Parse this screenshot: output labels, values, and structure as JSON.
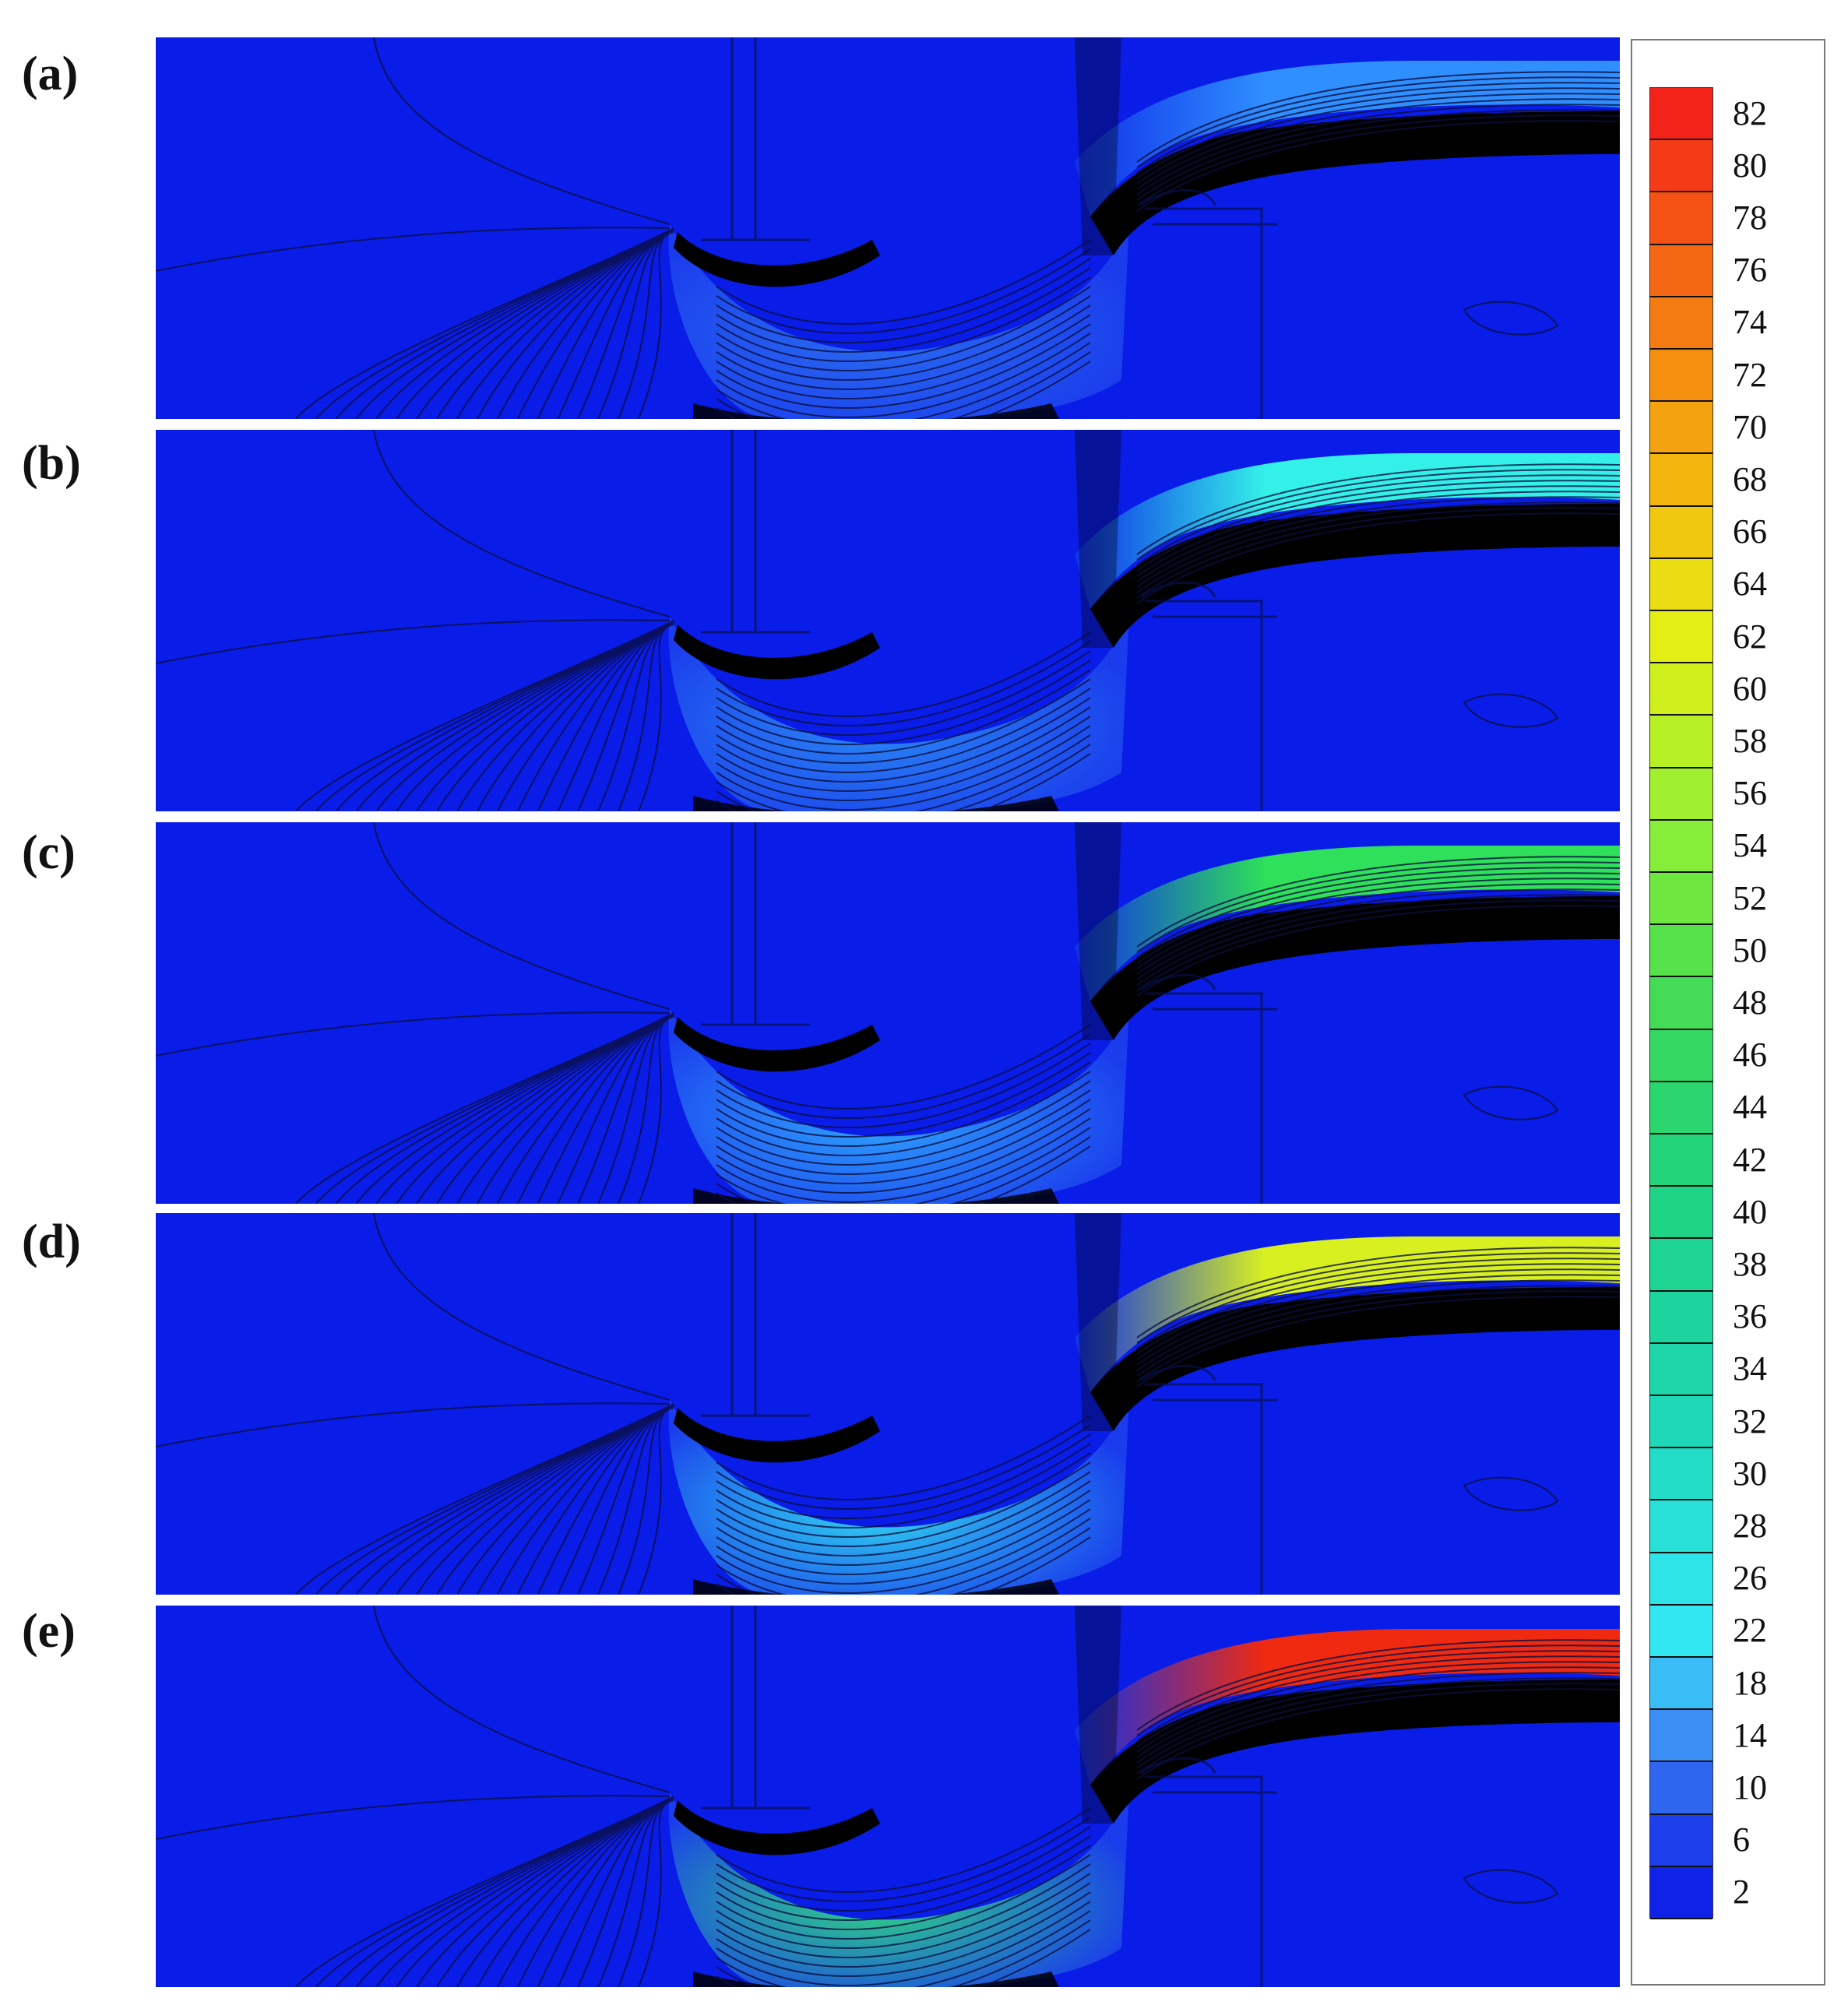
{
  "panels": [
    {
      "label": "(a)",
      "jet_color": "#2f8fff",
      "runner_color": "#2a6cf2"
    },
    {
      "label": "(b)",
      "jet_color": "#33f0e8",
      "runner_color": "#2a88f5"
    },
    {
      "label": "(c)",
      "jet_color": "#2ee05a",
      "runner_color": "#2fa6ff"
    },
    {
      "label": "(d)",
      "jet_color": "#d8f020",
      "runner_color": "#30d8f0"
    },
    {
      "label": "(e)",
      "jet_color": "#f02a10",
      "runner_color": "#30d880"
    }
  ],
  "colorbar": {
    "ticks": [
      "82",
      "80",
      "78",
      "76",
      "74",
      "72",
      "70",
      "68",
      "66",
      "64",
      "62",
      "60",
      "58",
      "56",
      "54",
      "52",
      "50",
      "48",
      "46",
      "44",
      "42",
      "40",
      "38",
      "36",
      "34",
      "32",
      "30",
      "28",
      "26",
      "22",
      "18",
      "14",
      "10",
      "6",
      "2"
    ],
    "colors": [
      "#f4231a",
      "#f43a17",
      "#f45215",
      "#f46713",
      "#f47b11",
      "#f48f10",
      "#f4a20f",
      "#f4b50f",
      "#f0c810",
      "#ecdc12",
      "#e2ee16",
      "#cff01c",
      "#b8f026",
      "#a0f030",
      "#86ee38",
      "#6ee840",
      "#58e24a",
      "#44dc56",
      "#34d862",
      "#2cd66e",
      "#24d47a",
      "#20d486",
      "#1ed492",
      "#1ed49e",
      "#1ed6aa",
      "#1ed8b8",
      "#22dcc8",
      "#28e0d8",
      "#2ee4e6",
      "#32e6f2",
      "#3abcf6",
      "#3a8ef4",
      "#2e66f0",
      "#1e40ec",
      "#0e22e8"
    ]
  }
}
